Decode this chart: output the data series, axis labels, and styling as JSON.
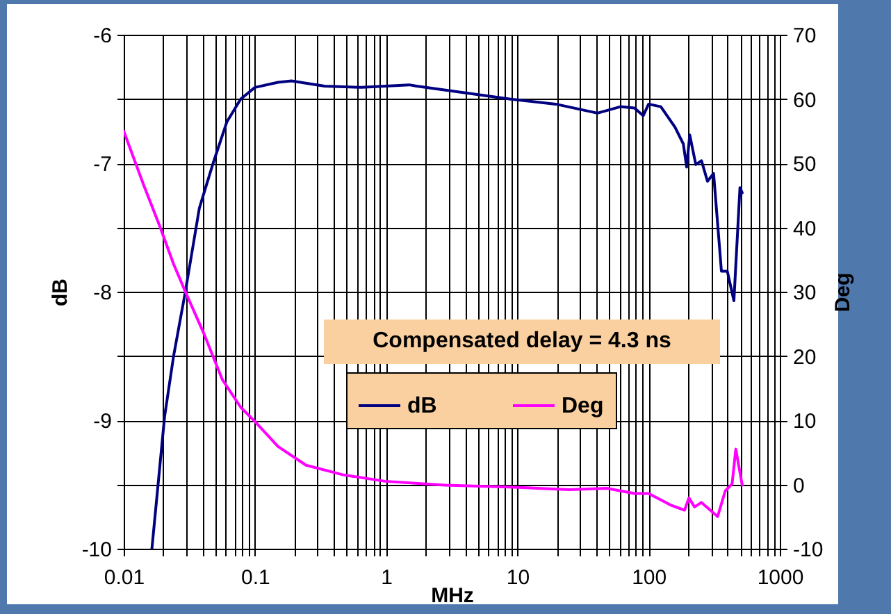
{
  "chart_data": {
    "type": "line",
    "xlabel": "MHz",
    "ylabel": "dB",
    "y2label": "Deg",
    "log": "x",
    "grid": true,
    "legend": "bottom right",
    "annotations": [
      "Compensated delay = 4.3 ns"
    ],
    "xlim": [
      0.01,
      1000
    ],
    "xticks": [
      0.01,
      {
        "value": 0.02,
        "label": null
      },
      {
        "value": 0.03,
        "label": null
      },
      {
        "value": 0.04,
        "label": null
      },
      {
        "value": 0.05,
        "label": null
      },
      {
        "value": 0.06,
        "label": null
      },
      {
        "value": 0.07,
        "label": null
      },
      {
        "value": 0.08,
        "label": null
      },
      {
        "value": 0.09,
        "label": null
      },
      0.1,
      {
        "value": 0.2,
        "label": null
      },
      {
        "value": 0.3,
        "label": null
      },
      {
        "value": 0.4,
        "label": null
      },
      {
        "value": 0.5,
        "label": null
      },
      {
        "value": 0.6,
        "label": null
      },
      {
        "value": 0.7,
        "label": null
      },
      {
        "value": 0.8,
        "label": null
      },
      {
        "value": 0.9,
        "label": null
      },
      1,
      {
        "value": 2,
        "label": null
      },
      {
        "value": 3,
        "label": null
      },
      {
        "value": 4,
        "label": null
      },
      {
        "value": 5,
        "label": null
      },
      {
        "value": 6,
        "label": null
      },
      {
        "value": 7,
        "label": null
      },
      {
        "value": 8,
        "label": null
      },
      {
        "value": 9,
        "label": null
      },
      10,
      {
        "value": 20,
        "label": null
      },
      {
        "value": 30,
        "label": null
      },
      {
        "value": 40,
        "label": null
      },
      {
        "value": 50,
        "label": null
      },
      {
        "value": 60,
        "label": null
      },
      {
        "value": 70,
        "label": null
      },
      {
        "value": 80,
        "label": null
      },
      {
        "value": 90,
        "label": null
      },
      100,
      {
        "value": 200,
        "label": null
      },
      {
        "value": 300,
        "label": null
      },
      {
        "value": 400,
        "label": null
      },
      {
        "value": 500,
        "label": null
      },
      {
        "value": 600,
        "label": null
      },
      {
        "value": 700,
        "label": null
      },
      {
        "value": 800,
        "label": null
      },
      {
        "value": 900,
        "label": null
      },
      1000
    ],
    "ylim": [
      -10,
      -6
    ],
    "yticks": [
      -10,
      {
        "value": -9.5,
        "label": null
      },
      -9,
      {
        "value": -8.5,
        "label": null
      },
      -8,
      {
        "value": -7.5,
        "label": null
      },
      -7,
      {
        "value": -6.5,
        "label": null
      },
      -6
    ],
    "y2lim": [
      -10,
      70
    ],
    "y2ticks": [
      -10,
      0,
      10,
      20,
      30,
      40,
      50,
      60,
      70
    ],
    "series": [
      {
        "name": "dB",
        "color": "#000080",
        "x": [
          0.0164,
          0.0205,
          0.024,
          0.0295,
          0.0377,
          0.048,
          0.061,
          0.078,
          0.1,
          0.15,
          0.19,
          0.34,
          0.65,
          1.5,
          1.71,
          3.86,
          8.7,
          19.6,
          40.8,
          61,
          78,
          91,
          100,
          124,
          159,
          184,
          195,
          206,
          229,
          253,
          281,
          313,
          359,
          398,
          447,
          497,
          517
        ],
        "values": [
          -10,
          -8.97,
          -8.5,
          -8.0,
          -7.35,
          -7.0,
          -6.68,
          -6.5,
          -6.41,
          -6.37,
          -6.36,
          -6.4,
          -6.41,
          -6.39,
          -6.4,
          -6.45,
          -6.5,
          -6.54,
          -6.61,
          -6.56,
          -6.57,
          -6.63,
          -6.54,
          -6.56,
          -6.72,
          -6.85,
          -7.03,
          -6.78,
          -7.01,
          -6.98,
          -7.14,
          -7.08,
          -7.84,
          -7.84,
          -8.07,
          -7.19,
          -7.23
        ]
      },
      {
        "name": "Deg",
        "color": "#ff00ff",
        "axis": "y2",
        "x": [
          0.01,
          0.0142,
          0.0189,
          0.024,
          0.0295,
          0.0408,
          0.0565,
          0.078,
          0.1,
          0.15,
          0.245,
          0.47,
          0.98,
          2.8,
          8.7,
          25,
          48,
          78,
          100,
          147,
          188,
          203,
          224,
          253,
          291,
          336,
          384,
          433,
          462,
          517
        ],
        "values": [
          55,
          46.6,
          40.1,
          34.3,
          30,
          23.5,
          16.3,
          12,
          9.8,
          5.9,
          3,
          1.5,
          0.5,
          -0.1,
          -0.4,
          -0.8,
          -0.6,
          -1.4,
          -1.4,
          -3.2,
          -4,
          -2.1,
          -3.5,
          -2.8,
          -3.9,
          -5,
          -1,
          0.1,
          5.5,
          -0.1
        ]
      }
    ]
  }
}
